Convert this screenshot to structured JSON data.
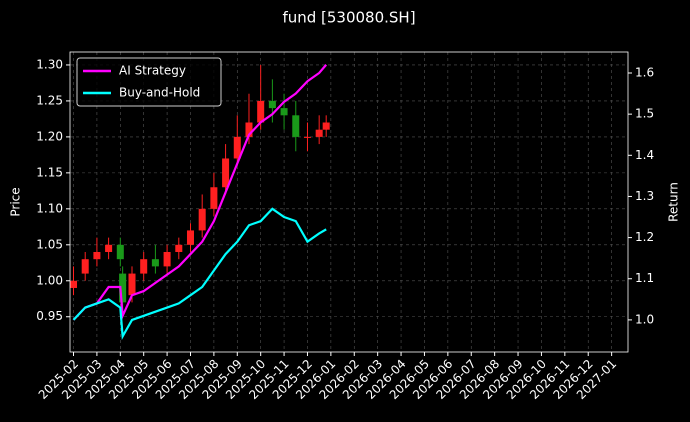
{
  "chart_data": {
    "type": "candlestick",
    "title": "fund [530080.SH]",
    "y_label": "Price",
    "y2_label": "Return",
    "x": [
      1.0,
      1.5,
      2.0,
      2.5,
      3.0,
      3.1,
      3.5,
      4.0,
      4.5,
      5.0,
      5.5,
      6.0,
      6.5,
      7.0,
      7.5,
      8.0,
      8.5,
      9.0,
      9.5,
      10.0,
      10.5,
      11.0,
      11.5,
      11.8
    ],
    "open": [
      0.99,
      1.01,
      1.03,
      1.04,
      1.05,
      1.01,
      0.98,
      1.01,
      1.03,
      1.02,
      1.04,
      1.05,
      1.07,
      1.1,
      1.13,
      1.17,
      1.2,
      1.22,
      1.25,
      1.24,
      1.23,
      1.2,
      1.2,
      1.21
    ],
    "high": [
      1.02,
      1.04,
      1.06,
      1.06,
      1.06,
      1.02,
      1.02,
      1.04,
      1.05,
      1.05,
      1.06,
      1.08,
      1.12,
      1.15,
      1.19,
      1.23,
      1.26,
      1.3,
      1.28,
      1.26,
      1.25,
      1.22,
      1.23,
      1.23
    ],
    "low": [
      0.98,
      1.0,
      1.02,
      1.03,
      1.02,
      0.96,
      0.97,
      1.0,
      1.01,
      1.01,
      1.03,
      1.04,
      1.06,
      1.09,
      1.12,
      1.16,
      1.19,
      1.21,
      1.22,
      1.21,
      1.18,
      1.18,
      1.19,
      1.2
    ],
    "close": [
      1.0,
      1.03,
      1.04,
      1.05,
      1.03,
      0.97,
      1.01,
      1.03,
      1.02,
      1.04,
      1.05,
      1.07,
      1.1,
      1.13,
      1.17,
      1.2,
      1.22,
      1.25,
      1.24,
      1.23,
      1.2,
      1.2,
      1.21,
      1.22
    ],
    "up_color": "#ff2020",
    "down_color": "#1a9a1a",
    "series": [
      {
        "name": "AI Strategy",
        "color": "#ff00ff",
        "axis": "y2",
        "values": [
          1.0,
          1.03,
          1.04,
          1.08,
          1.08,
          1.01,
          1.06,
          1.07,
          1.09,
          1.11,
          1.13,
          1.16,
          1.19,
          1.24,
          1.31,
          1.38,
          1.45,
          1.48,
          1.5,
          1.53,
          1.55,
          1.58,
          1.6,
          1.62
        ]
      },
      {
        "name": "Buy-and-Hold",
        "color": "#00ffff",
        "axis": "y2",
        "values": [
          1.0,
          1.03,
          1.04,
          1.05,
          1.03,
          0.96,
          1.0,
          1.01,
          1.02,
          1.03,
          1.04,
          1.06,
          1.08,
          1.12,
          1.16,
          1.19,
          1.23,
          1.24,
          1.27,
          1.25,
          1.24,
          1.19,
          1.21,
          1.22
        ]
      }
    ],
    "xlim": [
      0.85,
      24.7
    ],
    "xticks": [
      {
        "value": 1,
        "label": "2025-02"
      },
      {
        "value": 2,
        "label": "2025-03"
      },
      {
        "value": 3,
        "label": "2025-04"
      },
      {
        "value": 4,
        "label": "2025-05"
      },
      {
        "value": 5,
        "label": "2025-06"
      },
      {
        "value": 6,
        "label": "2025-07"
      },
      {
        "value": 7,
        "label": "2025-08"
      },
      {
        "value": 8,
        "label": "2025-09"
      },
      {
        "value": 9,
        "label": "2025-10"
      },
      {
        "value": 10,
        "label": "2025-11"
      },
      {
        "value": 11,
        "label": "2025-12"
      },
      {
        "value": 12,
        "label": "2026-01"
      },
      {
        "value": 13,
        "label": "2026-02"
      },
      {
        "value": 14,
        "label": "2026-03"
      },
      {
        "value": 15,
        "label": "2026-04"
      },
      {
        "value": 16,
        "label": "2026-05"
      },
      {
        "value": 17,
        "label": "2026-06"
      },
      {
        "value": 18,
        "label": "2026-07"
      },
      {
        "value": 19,
        "label": "2026-08"
      },
      {
        "value": 20,
        "label": "2026-09"
      },
      {
        "value": 21,
        "label": "2026-10"
      },
      {
        "value": 22,
        "label": "2026-11"
      },
      {
        "value": 23,
        "label": "2026-12"
      },
      {
        "value": 24,
        "label": "2027-01"
      }
    ],
    "ylim": [
      0.901,
      1.318
    ],
    "yticks": [
      0.95,
      {
        "value": 1,
        "label": "1.00"
      },
      1.05,
      {
        "value": 1.1,
        "label": "1.10"
      },
      1.15,
      {
        "value": 1.2,
        "label": "1.20"
      },
      1.25,
      {
        "value": 1.3,
        "label": "1.30"
      }
    ],
    "y2lim": [
      0.922,
      1.651
    ],
    "y2ticks": [
      {
        "value": 1,
        "label": "1.0"
      },
      1.1,
      1.2,
      1.3,
      1.4,
      1.5,
      1.6
    ],
    "grid": true,
    "legend": "upper left"
  }
}
